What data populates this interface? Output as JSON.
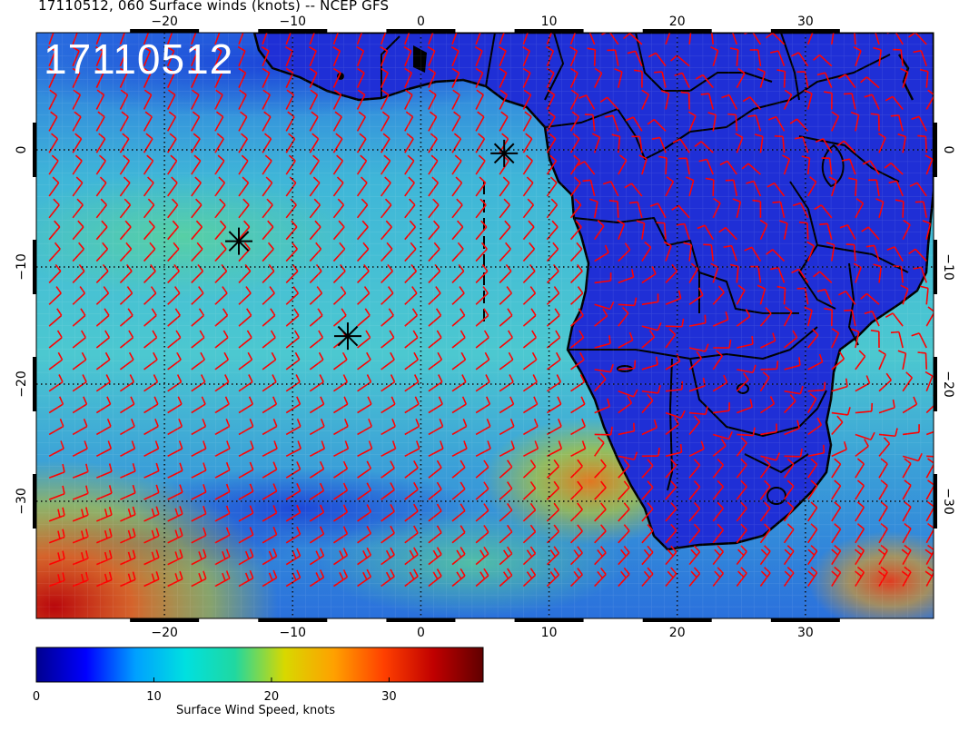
{
  "title": "17110512, 060 Surface winds (knots) -- NCEP GFS",
  "stamp": "17110512",
  "map": {
    "lon_range": [
      -30,
      40
    ],
    "lat_range": [
      -40,
      10
    ],
    "lon_ticks": [
      -20,
      -10,
      0,
      10,
      20,
      30
    ],
    "lat_ticks": [
      0,
      -10,
      -20,
      -30
    ],
    "lon_labels": [
      "−20",
      "−10",
      "0",
      "10",
      "20",
      "30"
    ],
    "lat_labels": [
      "0",
      "−10",
      "−20",
      "−30"
    ],
    "grid": true,
    "markers": [
      {
        "lon": 6.5,
        "lat": -0.3
      },
      {
        "lon": -14.2,
        "lat": -7.8
      },
      {
        "lon": -5.7,
        "lat": -15.9
      }
    ],
    "land_color": "#1f2fd6",
    "ocean_color": "#3fb6d8",
    "barb_color": "#ff0000"
  },
  "colorbar": {
    "title": "Surface Wind Speed, knots",
    "min": 0,
    "max": 38,
    "tick_values": [
      0,
      10,
      20,
      30
    ],
    "tick_labels": [
      "0",
      "10",
      "20",
      "30"
    ],
    "colors": [
      "#00008f",
      "#0000ff",
      "#00a0ff",
      "#00e0e0",
      "#20d8a0",
      "#d8d800",
      "#ffa000",
      "#ff4000",
      "#c00000",
      "#600000"
    ]
  }
}
